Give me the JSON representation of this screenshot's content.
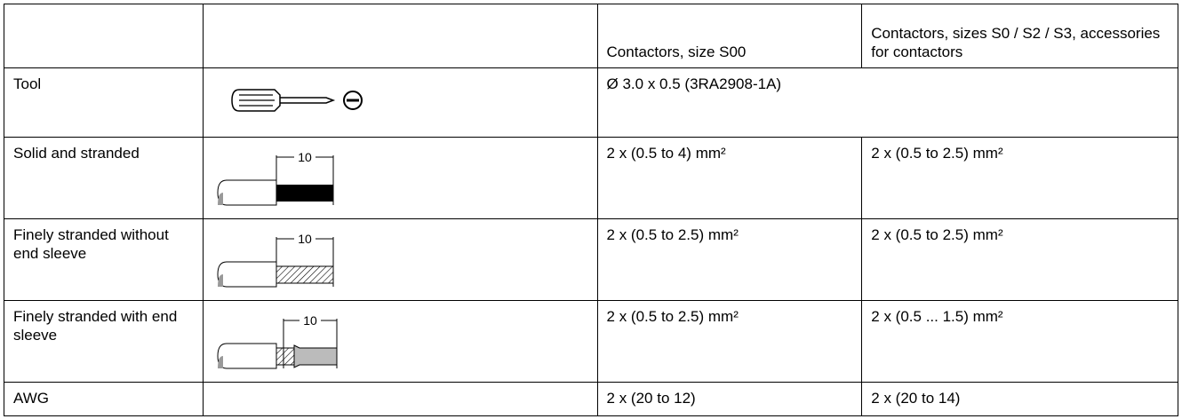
{
  "table": {
    "header": [
      "",
      "",
      "Contactors, size S00",
      "Contactors, sizes S0 / S2 / S3, accessories for contactors"
    ],
    "rows": [
      {
        "label": "Tool",
        "value": "Ø 3.0 x 0.5 (3RA2908-1A)"
      },
      {
        "label": "Solid and stranded",
        "dim": "10",
        "s00": "2 x (0.5 to 4) mm²",
        "s0": "2 x (0.5 to 2.5) mm²"
      },
      {
        "label": "Finely stranded without end sleeve",
        "dim": "10",
        "s00": "2 x (0.5 to 2.5) mm²",
        "s0": "2 x (0.5 to 2.5) mm²"
      },
      {
        "label": "Finely stranded with end sleeve",
        "dim": "10",
        "s00": "2 x (0.5 to 2.5) mm²",
        "s0": "2 x (0.5 ... 1.5) mm²"
      },
      {
        "label": "AWG",
        "s00": "2 x (20 to 12)",
        "s0": "2 x (20 to 14)"
      }
    ]
  }
}
